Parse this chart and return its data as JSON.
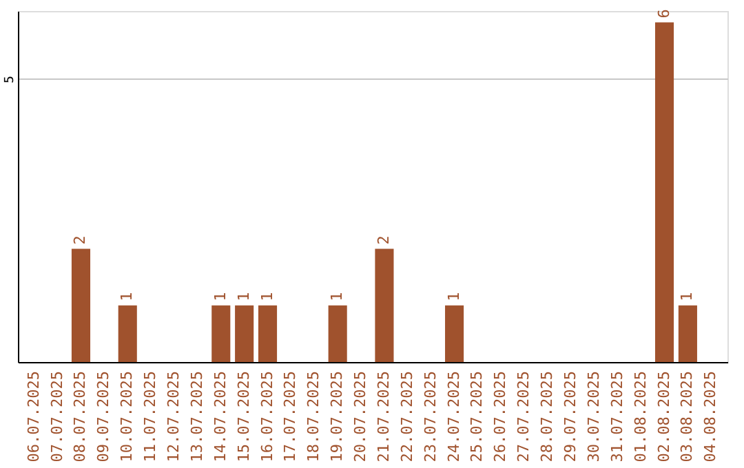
{
  "chart_data": {
    "type": "bar",
    "categories": [
      "06.07.2025",
      "07.07.2025",
      "08.07.2025",
      "09.07.2025",
      "10.07.2025",
      "11.07.2025",
      "12.07.2025",
      "13.07.2025",
      "14.07.2025",
      "15.07.2025",
      "16.07.2025",
      "17.07.2025",
      "18.07.2025",
      "19.07.2025",
      "20.07.2025",
      "21.07.2025",
      "22.07.2025",
      "23.07.2025",
      "24.07.2025",
      "25.07.2025",
      "26.07.2025",
      "27.07.2025",
      "28.07.2025",
      "29.07.2025",
      "30.07.2025",
      "31.07.2025",
      "01.08.2025",
      "02.08.2025",
      "03.08.2025",
      "04.08.2025"
    ],
    "values": [
      0,
      0,
      2,
      0,
      1,
      0,
      0,
      0,
      1,
      1,
      1,
      0,
      0,
      1,
      0,
      2,
      0,
      0,
      1,
      0,
      0,
      0,
      0,
      0,
      0,
      0,
      0,
      6,
      1,
      0
    ],
    "value_labels": [
      null,
      null,
      "2",
      null,
      "1",
      null,
      null,
      null,
      "1",
      "1",
      "1",
      null,
      null,
      "1",
      null,
      "2",
      null,
      null,
      "1",
      null,
      null,
      null,
      null,
      null,
      null,
      null,
      null,
      "6",
      "1",
      null
    ],
    "color": "#a0522d",
    "ylim": [
      0,
      6.2
    ],
    "yticks": [
      5
    ],
    "grid": "y"
  }
}
